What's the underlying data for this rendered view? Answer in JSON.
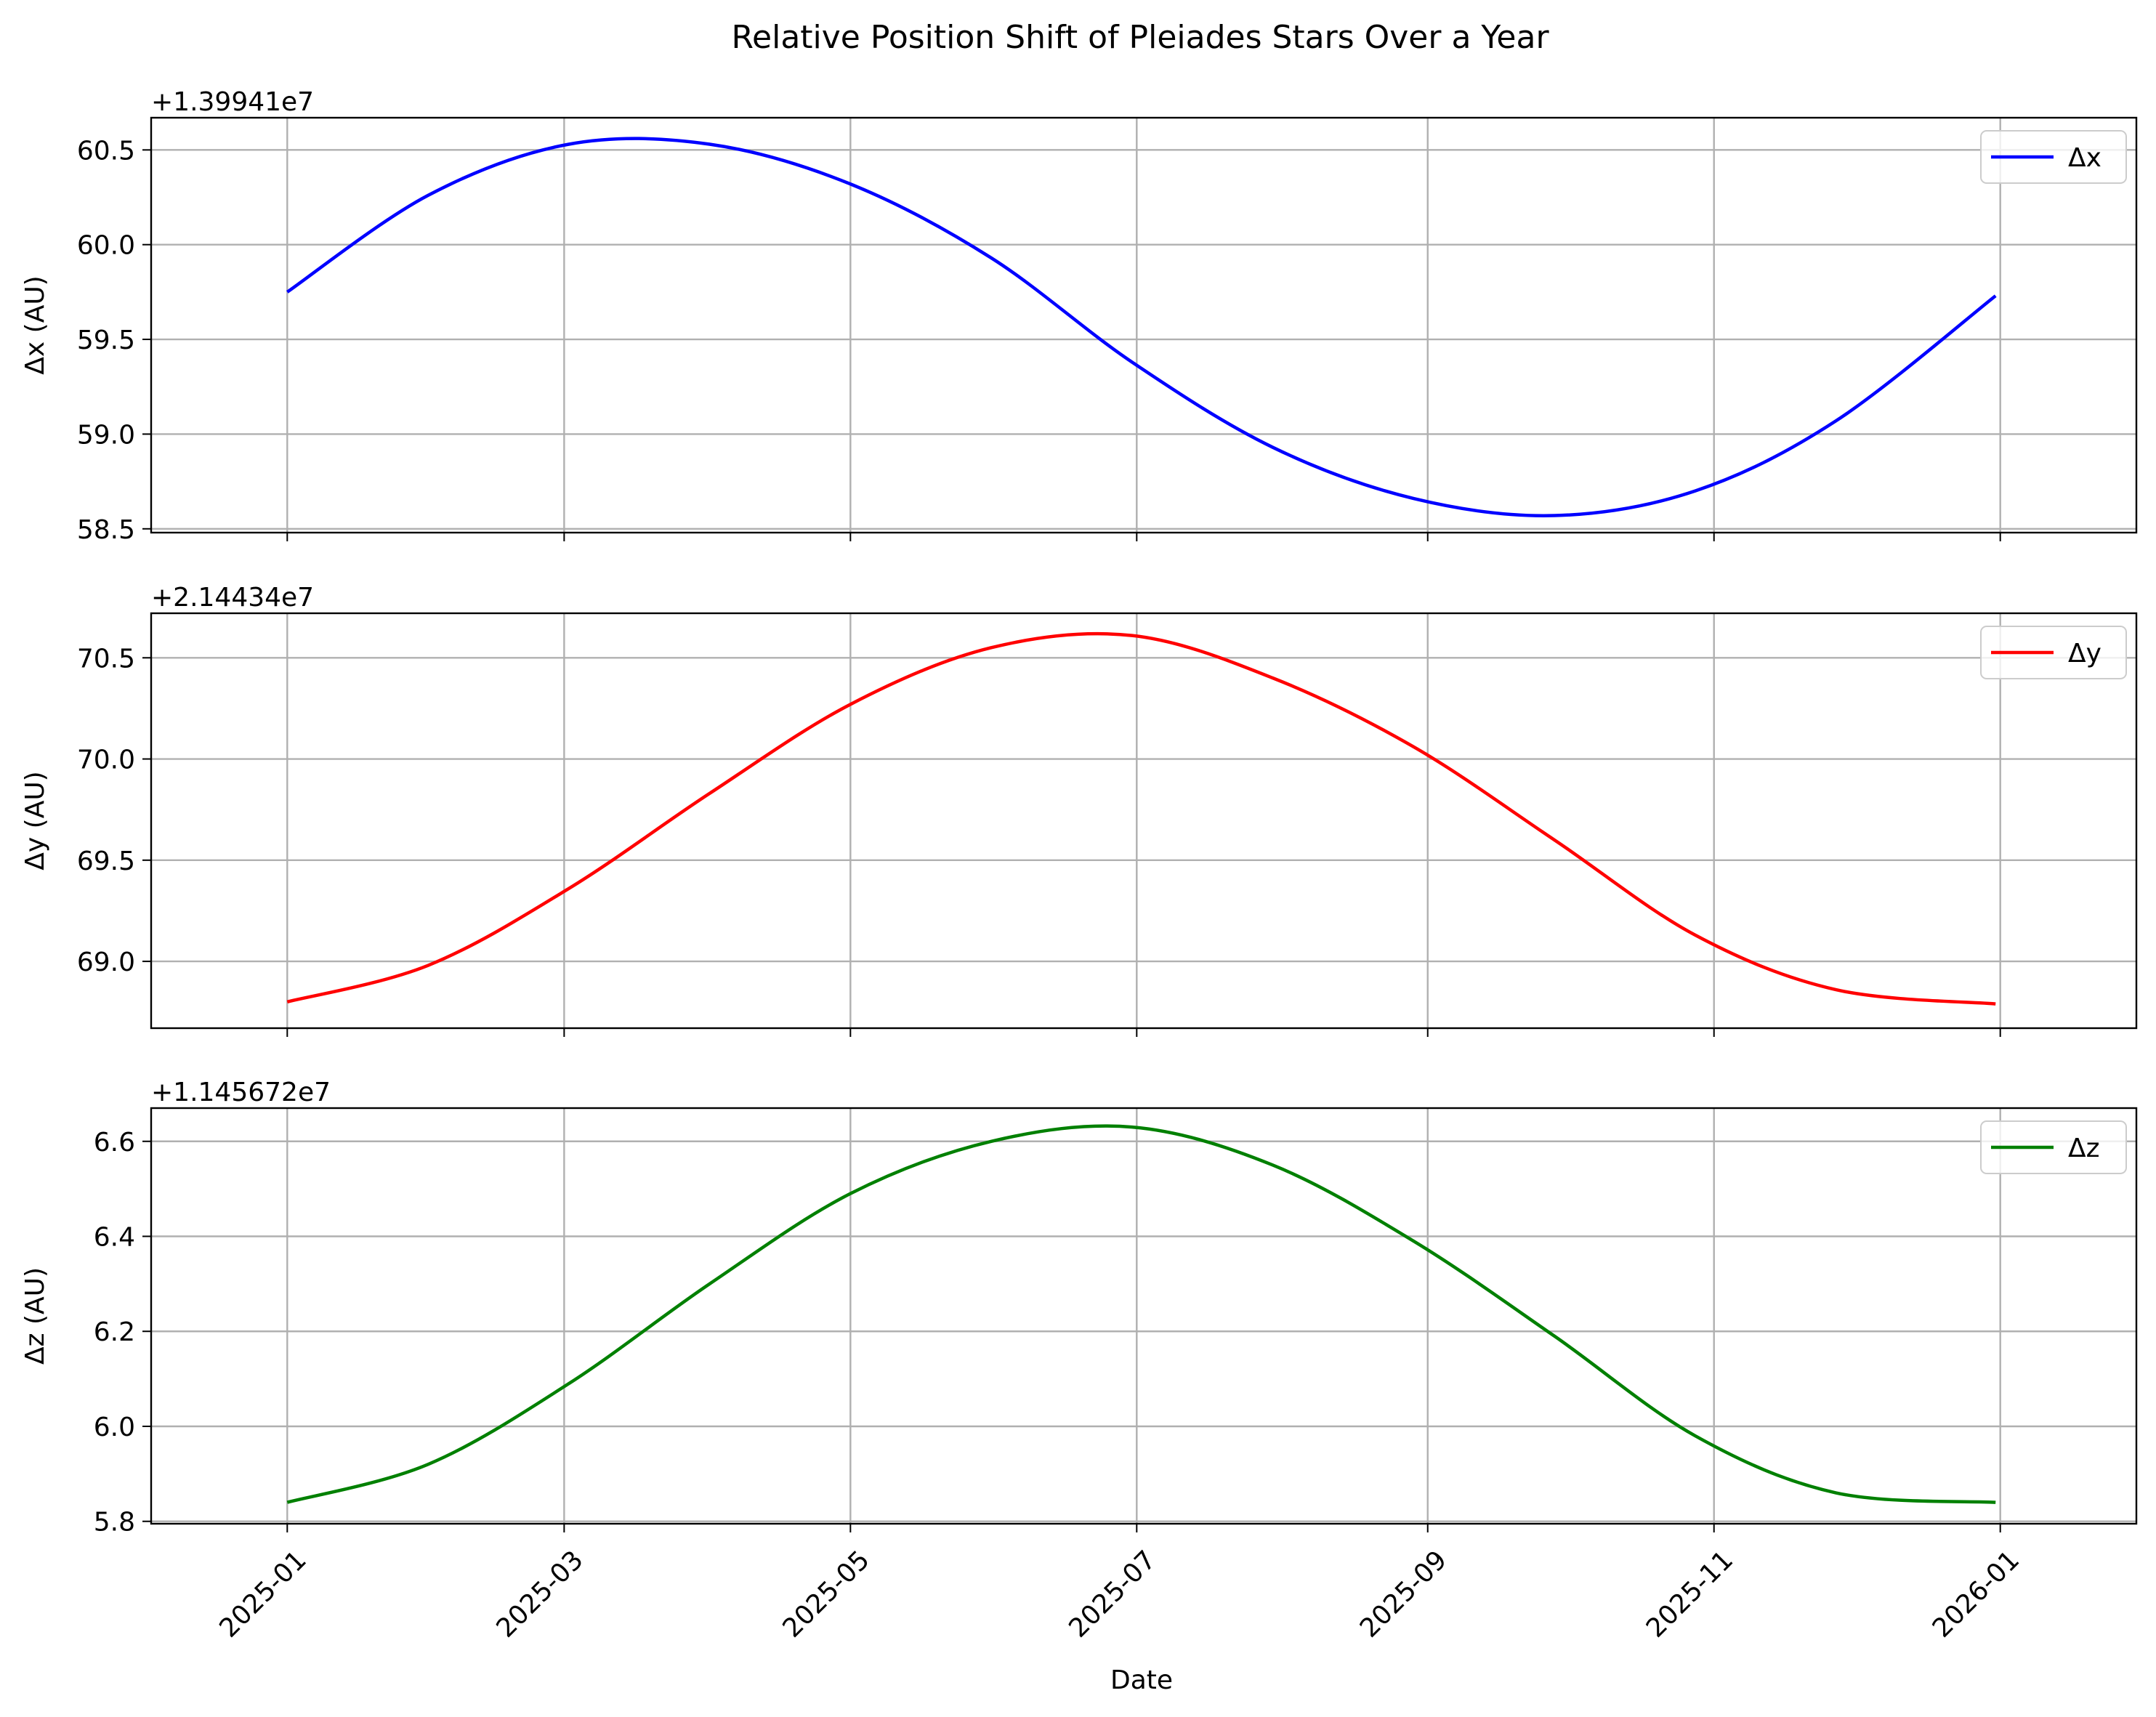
{
  "chart_data": {
    "type": "line",
    "title": "Relative Position Shift of Pleiades Stars Over a Year",
    "xlabel": "Date",
    "x_ticks": [
      "2025-01",
      "2025-03",
      "2025-05",
      "2025-07",
      "2025-09",
      "2025-11",
      "2026-01"
    ],
    "x_range": [
      "2024-12-03",
      "2026-01-30"
    ],
    "x_tick_rotation_deg": 45,
    "grid": true,
    "shared_x": true,
    "panels": [
      {
        "ylabel": "Δx (AU)",
        "offset": "+1.39941e7",
        "ylim": [
          58.48,
          60.67
        ],
        "yticks": [
          "58.5",
          "59.0",
          "59.5",
          "60.0",
          "60.5"
        ],
        "legend_position": "upper right",
        "series": [
          {
            "name": "Δx",
            "color": "#0000ff",
            "x": [
              "2025-01-01",
              "2025-01-31",
              "2025-03-02",
              "2025-04-01",
              "2025-05-01",
              "2025-05-31",
              "2025-06-30",
              "2025-07-30",
              "2025-08-29",
              "2025-09-28",
              "2025-10-28",
              "2025-11-27",
              "2025-12-31"
            ],
            "values": [
              59.75,
              60.26,
              60.53,
              60.53,
              60.32,
              59.93,
              59.38,
              58.93,
              58.66,
              58.57,
              58.7,
              59.07,
              59.73
            ]
          }
        ]
      },
      {
        "ylabel": "Δy (AU)",
        "offset": "+2.14434e7",
        "ylim": [
          68.67,
          70.72
        ],
        "yticks": [
          "69.0",
          "69.5",
          "70.0",
          "70.5"
        ],
        "legend_position": "upper right",
        "series": [
          {
            "name": "Δy",
            "color": "#ff0000",
            "x": [
              "2025-01-01",
              "2025-01-31",
              "2025-03-02",
              "2025-04-01",
              "2025-05-01",
              "2025-05-31",
              "2025-06-30",
              "2025-07-30",
              "2025-08-29",
              "2025-09-28",
              "2025-10-28",
              "2025-11-27",
              "2025-12-31"
            ],
            "values": [
              68.8,
              68.98,
              69.36,
              69.83,
              70.27,
              70.55,
              70.61,
              70.4,
              70.06,
              69.6,
              69.13,
              68.86,
              68.79
            ]
          }
        ]
      },
      {
        "ylabel": "Δz (AU)",
        "offset": "+1.145672e7",
        "ylim": [
          5.795,
          6.67
        ],
        "yticks": [
          "5.8",
          "6.0",
          "6.2",
          "6.4",
          "6.6"
        ],
        "legend_position": "upper right",
        "series": [
          {
            "name": "Δz",
            "color": "#008000",
            "x": [
              "2025-01-01",
              "2025-01-31",
              "2025-03-02",
              "2025-04-01",
              "2025-05-01",
              "2025-05-31",
              "2025-06-30",
              "2025-07-30",
              "2025-08-29",
              "2025-09-28",
              "2025-10-28",
              "2025-11-27",
              "2025-12-31"
            ],
            "values": [
              5.84,
              5.92,
              6.09,
              6.3,
              6.49,
              6.6,
              6.63,
              6.55,
              6.39,
              6.19,
              5.98,
              5.86,
              5.84
            ]
          }
        ]
      }
    ]
  }
}
